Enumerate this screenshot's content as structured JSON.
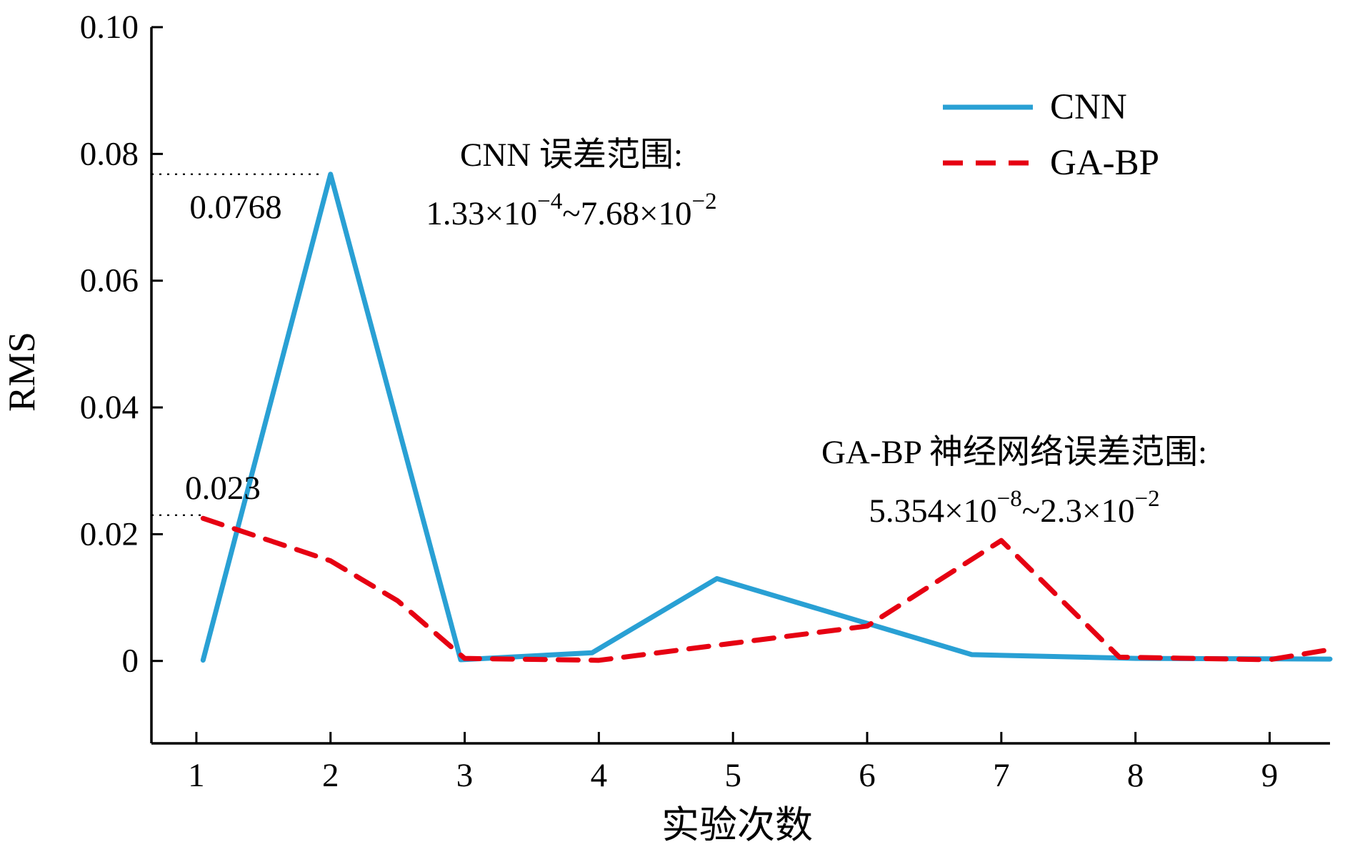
{
  "chart_data": {
    "type": "line",
    "title": "",
    "xlabel": "实验次数",
    "ylabel": "RMS",
    "xlim": [
      0.665,
      9.45
    ],
    "ylim": [
      -0.013,
      0.1
    ],
    "grid": false,
    "legend_position": "top-right",
    "x_ticks": {
      "values": [
        1,
        2,
        3,
        4,
        5,
        6,
        7,
        8,
        9
      ],
      "labels": [
        "1",
        "2",
        "3",
        "4",
        "5",
        "6",
        "7",
        "8",
        "9"
      ]
    },
    "y_ticks": {
      "values": [
        0,
        0.02,
        0.04,
        0.06,
        0.08,
        0.1
      ],
      "labels": [
        "0",
        "0.02",
        "0.04",
        "0.06",
        "0.08",
        "0.10"
      ]
    },
    "series": [
      {
        "name": "CNN",
        "color": "#29a0d4",
        "line_style": "solid",
        "x": [
          1.05,
          2.0,
          2.97,
          3.95,
          4.88,
          6.78,
          8.0,
          9.45
        ],
        "y": [
          0.00013,
          0.0768,
          0.0002,
          0.0013,
          0.013,
          0.001,
          0.0004,
          0.0003
        ]
      },
      {
        "name": "GA-BP",
        "color": "#e60012",
        "line_style": "dashed",
        "x": [
          1.05,
          2.0,
          2.5,
          3.0,
          4.0,
          5.0,
          6.0,
          7.0,
          7.88,
          9.0,
          9.45
        ],
        "y": [
          0.0225,
          0.0158,
          0.0095,
          0.0004,
          0.0001,
          0.0028,
          0.0055,
          0.019,
          0.0006,
          0.0002,
          0.0018
        ]
      }
    ],
    "annotations": {
      "cnn_peak_value": "0.0768",
      "gabp_start_value": "0.023",
      "cnn_range_title": "CNN 误差范围:",
      "cnn_range_value": [
        {
          "t": "1.33×10"
        },
        {
          "t": "−4",
          "sup": true
        },
        {
          "t": "~7.68×10"
        },
        {
          "t": "−2",
          "sup": true
        }
      ],
      "gabp_range_title": "GA-BP 神经网络误差范围:",
      "gabp_range_value": [
        {
          "t": "5.354×10"
        },
        {
          "t": "−8",
          "sup": true
        },
        {
          "t": "~2.3×10"
        },
        {
          "t": "−2",
          "sup": true
        }
      ],
      "leader_lines": [
        {
          "y": 0.0768,
          "x_from": 0.665,
          "x_to": 1.95
        },
        {
          "y": 0.023,
          "x_from": 0.665,
          "x_to": 1.06
        }
      ]
    }
  }
}
